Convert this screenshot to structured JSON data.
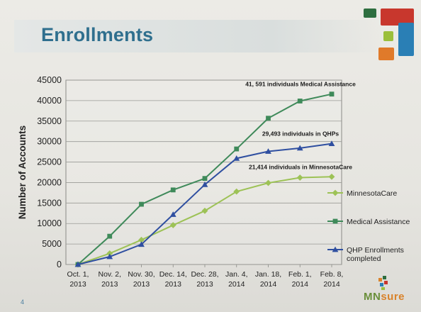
{
  "slide": {
    "title": "Enrollments",
    "page_number": "4",
    "logo": {
      "mn": "MN",
      "sure": "sure"
    },
    "colors": {
      "title": "#2f6f8e",
      "deco_red": "#c8372d",
      "deco_green_dark": "#2e6e3f",
      "deco_green_light": "#9bbf3b",
      "deco_blue": "#2a7fb5",
      "deco_orange": "#e07a2a"
    }
  },
  "chart_data": {
    "type": "line",
    "ylabel": "Number of Accounts",
    "xlabel": "",
    "ylim": [
      0,
      45000
    ],
    "yticks": [
      0,
      5000,
      10000,
      15000,
      20000,
      25000,
      30000,
      35000,
      40000,
      45000
    ],
    "grid": true,
    "legend_position": "right",
    "categories": [
      [
        "Oct. 1,",
        "2013"
      ],
      [
        "Nov. 2,",
        "2013"
      ],
      [
        "Nov. 30,",
        "2013"
      ],
      [
        "Dec. 14,",
        "2013"
      ],
      [
        "Dec. 28,",
        "2013"
      ],
      [
        "Jan. 4,",
        "2014"
      ],
      [
        "Jan. 18,",
        "2014"
      ],
      [
        "Feb. 1,",
        "2014"
      ],
      [
        "Feb. 8,",
        "2014"
      ]
    ],
    "series": [
      {
        "name": "MinnesotaCare",
        "color": "#9dc256",
        "marker": "diamond",
        "values": [
          0,
          2700,
          6000,
          9600,
          13100,
          17800,
          19900,
          21200,
          21414
        ],
        "end_label": "21,414 individuals in MinnesotaCare"
      },
      {
        "name": "Medical Assistance",
        "color": "#3f8a5a",
        "marker": "square",
        "values": [
          0,
          6900,
          14700,
          18200,
          21000,
          28200,
          35700,
          39900,
          41591
        ],
        "end_label": "41, 591 individuals Medical Assistance"
      },
      {
        "name": "QHP Enrollments completed",
        "legend_lines": [
          "QHP Enrollments",
          "completed"
        ],
        "color": "#2f4fa0",
        "marker": "triangle",
        "values": [
          0,
          1900,
          4900,
          12200,
          19500,
          25900,
          27600,
          28400,
          29493
        ],
        "end_label": "29,493 individuals  in QHPs"
      }
    ]
  }
}
